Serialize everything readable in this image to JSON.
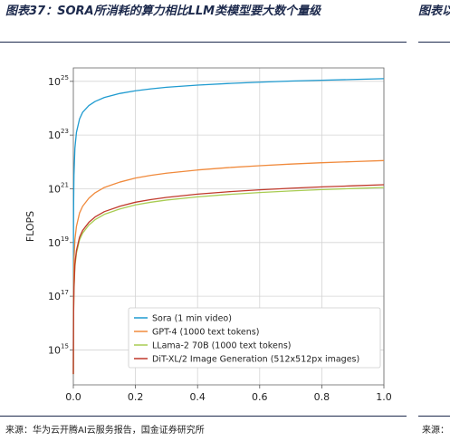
{
  "figure": {
    "title": "图表37：SORA所消耗的算力相比LLM类模型要大数个量级",
    "next_title": "图表以上",
    "source": "来源：华为云开腾AI云服务报告，国金证券研究所",
    "next_source": "来源："
  },
  "chart_data": {
    "type": "line",
    "title": "",
    "xlabel": "",
    "ylabel": "FLOPS",
    "xlim": [
      0.0,
      1.0
    ],
    "ylim_log10": [
      13.7,
      25.5
    ],
    "yscale": "log",
    "grid": true,
    "legend_position": "bottom-right",
    "x_ticks": [
      "0.0",
      "0.2",
      "0.4",
      "0.6",
      "0.8",
      "1.0"
    ],
    "y_ticks": [
      {
        "exp": 15,
        "label": "10",
        "sup": "15"
      },
      {
        "exp": 17,
        "label": "10",
        "sup": "17"
      },
      {
        "exp": 19,
        "label": "10",
        "sup": "19"
      },
      {
        "exp": 21,
        "label": "10",
        "sup": "21"
      },
      {
        "exp": 23,
        "label": "10",
        "sup": "23"
      },
      {
        "exp": 25,
        "label": "10",
        "sup": "25"
      }
    ],
    "x": [
      0.0,
      0.0005,
      0.001,
      0.002,
      0.005,
      0.01,
      0.02,
      0.03,
      0.05,
      0.07,
      0.1,
      0.15,
      0.2,
      0.25,
      0.3,
      0.4,
      0.5,
      0.6,
      0.7,
      0.8,
      0.9,
      1.0
    ],
    "series": [
      {
        "name": "Sora (1 min video)",
        "color": "#1f9bd0",
        "values_log10": [
          14.1,
          19.3,
          20.5,
          21.5,
          22.5,
          23.1,
          23.6,
          23.85,
          24.1,
          24.25,
          24.4,
          24.55,
          24.65,
          24.72,
          24.78,
          24.86,
          24.92,
          24.97,
          25.01,
          25.04,
          25.07,
          25.1
        ]
      },
      {
        "name": "GPT-4 (1000 text tokens)",
        "color": "#f08a3c",
        "values_log10": [
          14.1,
          16.7,
          17.5,
          18.3,
          19.1,
          19.6,
          20.1,
          20.35,
          20.65,
          20.85,
          21.05,
          21.25,
          21.4,
          21.5,
          21.58,
          21.7,
          21.79,
          21.86,
          21.92,
          21.97,
          22.01,
          22.05
        ]
      },
      {
        "name": "LLama-2 70B (1000 text tokens)",
        "color": "#a8cc52",
        "values_log10": [
          14.1,
          15.5,
          16.4,
          17.2,
          18.1,
          18.6,
          19.1,
          19.35,
          19.65,
          19.85,
          20.05,
          20.25,
          20.4,
          20.5,
          20.58,
          20.7,
          20.79,
          20.86,
          20.92,
          20.97,
          21.01,
          21.05
        ]
      },
      {
        "name": "DiT-XL/2 Image Generation (512x512px images)",
        "color": "#c0392b",
        "values_log10": [
          14.1,
          15.6,
          16.5,
          17.3,
          18.2,
          18.7,
          19.2,
          19.45,
          19.75,
          19.95,
          20.15,
          20.35,
          20.5,
          20.6,
          20.68,
          20.8,
          20.89,
          20.96,
          21.02,
          21.07,
          21.11,
          21.15
        ]
      }
    ]
  }
}
